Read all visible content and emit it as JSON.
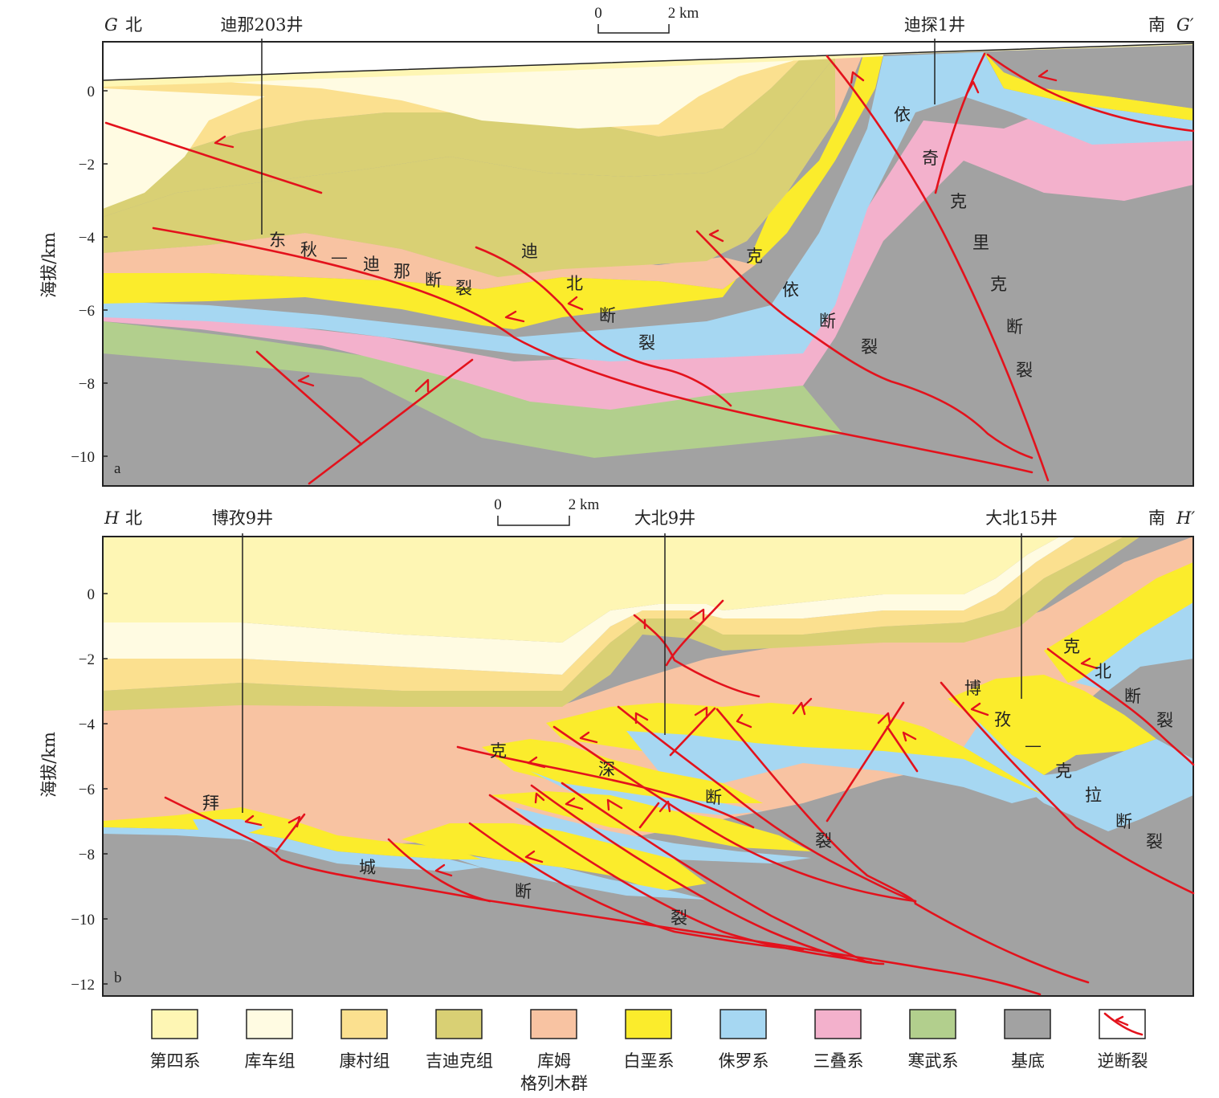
{
  "colors": {
    "quaternary": "#fef6b4",
    "kuqa": "#fffbe2",
    "kangcun": "#fbe08f",
    "jidike": "#d9d074",
    "kumugeliemu": "#f8c3a2",
    "cretaceous": "#fbec2c",
    "jurassic": "#a6d7f2",
    "triassic": "#f3b1cc",
    "cambrian": "#b2cf8d",
    "basement": "#a2a2a2",
    "fault": "#e3121c"
  },
  "panel_a": {
    "tag": "a",
    "left_letter": "G",
    "left_dir": "北",
    "right_dir": "南",
    "right_letter": "G′",
    "scale": {
      "zero": "0",
      "length": "2 km"
    },
    "wells": [
      "迪那203井",
      "迪探1井"
    ],
    "y_label": "海拔/km",
    "y_ticks": [
      "0",
      "−2",
      "−4",
      "−6",
      "−8",
      "−10"
    ],
    "faults": {
      "dongqiu": [
        "东",
        "秋",
        "—",
        "迪",
        "那",
        "断",
        "裂"
      ],
      "dibei": [
        "迪",
        "北",
        "断",
        "裂"
      ],
      "keyi": [
        "克",
        "依",
        "断",
        "裂"
      ],
      "yiqikelike": [
        "依",
        "奇",
        "克",
        "里",
        "克",
        "断",
        "裂"
      ]
    }
  },
  "panel_b": {
    "tag": "b",
    "left_letter": "H",
    "left_dir": "北",
    "right_dir": "南",
    "right_letter": "H′",
    "scale": {
      "zero": "0",
      "length": "2 km"
    },
    "wells": [
      "博孜9井",
      "大北9井",
      "大北15井"
    ],
    "y_label": "海拔/km",
    "y_ticks": [
      "0",
      "−2",
      "−4",
      "−6",
      "−8",
      "−10",
      "−12"
    ],
    "faults": {
      "baicheng": [
        "拜",
        "城",
        "断",
        "裂"
      ],
      "keshen": [
        "克",
        "深",
        "断",
        "裂"
      ],
      "bozikela": [
        "博",
        "孜",
        "—",
        "克",
        "拉",
        "断",
        "裂"
      ],
      "kebei": [
        "克",
        "北",
        "断",
        "裂"
      ]
    }
  },
  "legend": [
    {
      "key": "quaternary",
      "label": "第四系"
    },
    {
      "key": "kuqa",
      "label": "库车组"
    },
    {
      "key": "kangcun",
      "label": "康村组"
    },
    {
      "key": "jidike",
      "label": "吉迪克组"
    },
    {
      "key": "kumugeliemu",
      "label": "库姆",
      "label2": "格列木群"
    },
    {
      "key": "cretaceous",
      "label": "白垩系"
    },
    {
      "key": "jurassic",
      "label": "侏罗系"
    },
    {
      "key": "triassic",
      "label": "三叠系"
    },
    {
      "key": "cambrian",
      "label": "寒武系"
    },
    {
      "key": "basement",
      "label": "基底"
    },
    {
      "key": "fault",
      "label": "逆断裂"
    }
  ]
}
